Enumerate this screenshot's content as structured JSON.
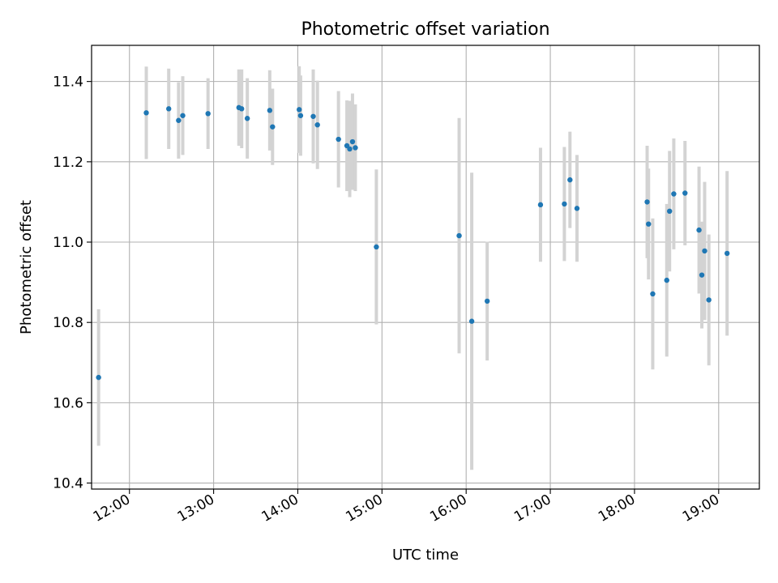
{
  "chart_data": {
    "type": "scatter",
    "title": "Photometric offset variation",
    "xlabel": "UTC time",
    "ylabel": "Photometric offset",
    "xlim": [
      "11:33",
      "19:29"
    ],
    "ylim": [
      10.385,
      11.49
    ],
    "grid": true,
    "x_ticks": [
      "12:00",
      "13:00",
      "14:00",
      "15:00",
      "16:00",
      "17:00",
      "18:00",
      "19:00"
    ],
    "y_ticks": [
      "10.4",
      "10.6",
      "10.8",
      "11.0",
      "11.2",
      "11.4"
    ],
    "colors": {
      "point": "#1f77b4",
      "errorbar": "#d3d3d3",
      "grid": "#b0b0b0"
    },
    "points": [
      {
        "time": "11:38",
        "y": 10.663,
        "err": 0.17
      },
      {
        "time": "12:12",
        "y": 11.322,
        "err": 0.115
      },
      {
        "time": "12:28",
        "y": 11.332,
        "err": 0.1
      },
      {
        "time": "12:35",
        "y": 11.303,
        "err": 0.095
      },
      {
        "time": "12:38",
        "y": 11.315,
        "err": 0.098
      },
      {
        "time": "12:56",
        "y": 11.32,
        "err": 0.088
      },
      {
        "time": "13:18",
        "y": 11.335,
        "err": 0.095
      },
      {
        "time": "13:20",
        "y": 11.332,
        "err": 0.098
      },
      {
        "time": "13:24",
        "y": 11.308,
        "err": 0.1
      },
      {
        "time": "13:40",
        "y": 11.328,
        "err": 0.1
      },
      {
        "time": "13:42",
        "y": 11.287,
        "err": 0.095
      },
      {
        "time": "14:01",
        "y": 11.33,
        "err": 0.108
      },
      {
        "time": "14:02",
        "y": 11.315,
        "err": 0.1
      },
      {
        "time": "14:11",
        "y": 11.313,
        "err": 0.117
      },
      {
        "time": "14:14",
        "y": 11.292,
        "err": 0.11
      },
      {
        "time": "14:29",
        "y": 11.256,
        "err": 0.12
      },
      {
        "time": "14:35",
        "y": 11.24,
        "err": 0.113
      },
      {
        "time": "14:37",
        "y": 11.232,
        "err": 0.12
      },
      {
        "time": "14:39",
        "y": 11.25,
        "err": 0.12
      },
      {
        "time": "14:41",
        "y": 11.235,
        "err": 0.108
      },
      {
        "time": "14:56",
        "y": 10.988,
        "err": 0.193
      },
      {
        "time": "15:55",
        "y": 11.016,
        "err": 0.293
      },
      {
        "time": "16:04",
        "y": 10.803,
        "err": 0.37
      },
      {
        "time": "16:15",
        "y": 10.853,
        "err": 0.148
      },
      {
        "time": "16:53",
        "y": 11.093,
        "err": 0.142
      },
      {
        "time": "17:10",
        "y": 11.095,
        "err": 0.142
      },
      {
        "time": "17:14",
        "y": 11.155,
        "err": 0.12
      },
      {
        "time": "17:19",
        "y": 11.084,
        "err": 0.133
      },
      {
        "time": "18:09",
        "y": 11.1,
        "err": 0.14
      },
      {
        "time": "18:10",
        "y": 11.045,
        "err": 0.138
      },
      {
        "time": "18:13",
        "y": 10.871,
        "err": 0.188
      },
      {
        "time": "18:23",
        "y": 10.905,
        "err": 0.19
      },
      {
        "time": "18:25",
        "y": 11.077,
        "err": 0.15
      },
      {
        "time": "18:28",
        "y": 11.12,
        "err": 0.138
      },
      {
        "time": "18:36",
        "y": 11.122,
        "err": 0.13
      },
      {
        "time": "18:46",
        "y": 11.03,
        "err": 0.158
      },
      {
        "time": "18:48",
        "y": 10.918,
        "err": 0.133
      },
      {
        "time": "18:50",
        "y": 10.978,
        "err": 0.172
      },
      {
        "time": "18:53",
        "y": 10.856,
        "err": 0.163
      },
      {
        "time": "19:06",
        "y": 10.972,
        "err": 0.205
      }
    ]
  }
}
